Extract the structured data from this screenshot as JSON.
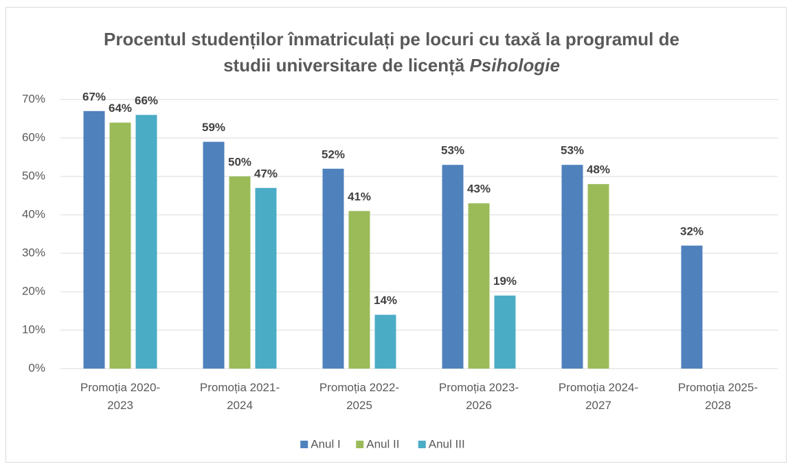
{
  "chart_data": {
    "type": "bar",
    "title": "Procentul studenților înmatriculați pe locuri cu taxă la programul de studii universitare de licență",
    "title_italic": "Psihologie",
    "categories": [
      "Promoția 2020-2023",
      "Promoția 2021-2024",
      "Promoția 2022-2025",
      "Promoția 2023-2026",
      "Promoția 2024-2027",
      "Promoția 2025-2028"
    ],
    "series": [
      {
        "name": "Anul I",
        "color": "#4f81bd",
        "values": [
          67,
          59,
          52,
          53,
          53,
          32
        ],
        "value_labels": [
          "67%",
          "59%",
          "52%",
          "53%",
          "53%",
          "32%"
        ]
      },
      {
        "name": "Anul II",
        "color": "#9bbb59",
        "values": [
          64,
          50,
          41,
          43,
          48,
          null
        ],
        "value_labels": [
          "64%",
          "50%",
          "41%",
          "43%",
          "48%",
          null
        ]
      },
      {
        "name": "Anul III",
        "color": "#4bacc6",
        "values": [
          66,
          47,
          14,
          19,
          null,
          null
        ],
        "value_labels": [
          "66%",
          "47%",
          "14%",
          "19%",
          null,
          null
        ]
      }
    ],
    "ylim": [
      0,
      70
    ],
    "yticks": [
      {
        "value": 0,
        "label": "0%"
      },
      {
        "value": 10,
        "label": "10%"
      },
      {
        "value": 20,
        "label": "20%"
      },
      {
        "value": 30,
        "label": "30%"
      },
      {
        "value": 40,
        "label": "40%"
      },
      {
        "value": 50,
        "label": "50%"
      },
      {
        "value": 60,
        "label": "60%"
      },
      {
        "value": 70,
        "label": "70%"
      }
    ],
    "grid": true,
    "legend": "bottom"
  }
}
